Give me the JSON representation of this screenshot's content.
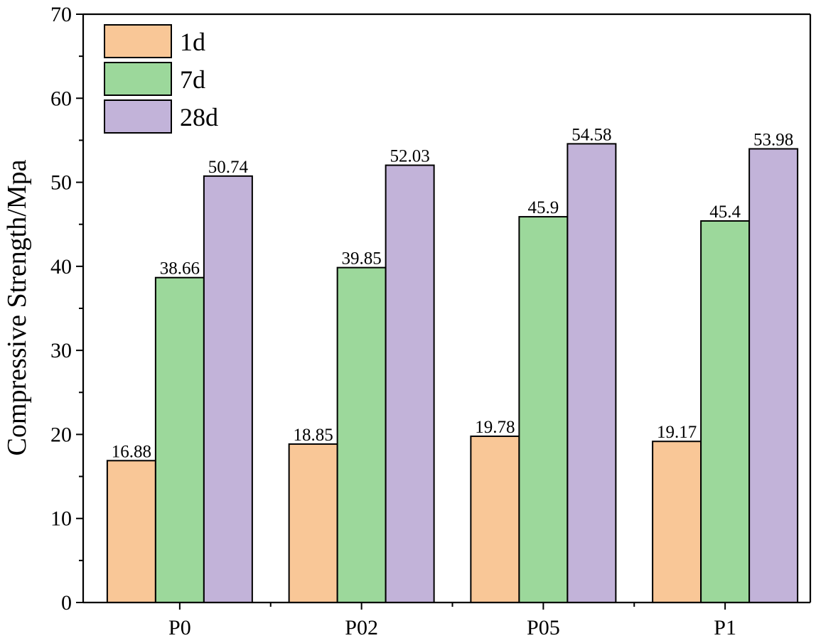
{
  "chart_data": {
    "type": "bar",
    "title": "",
    "xlabel": "",
    "ylabel": "Compressive Strength/Mpa",
    "ylim": [
      0,
      70
    ],
    "yticks": [
      0,
      10,
      20,
      30,
      40,
      50,
      60,
      70
    ],
    "categories": [
      "P0",
      "P02",
      "P05",
      "P1"
    ],
    "series": [
      {
        "name": "1d",
        "color": "#F9C797",
        "values": [
          16.88,
          18.85,
          19.78,
          19.17
        ],
        "labels": [
          "16.88",
          "18.85",
          "19.78",
          "19.17"
        ]
      },
      {
        "name": "7d",
        "color": "#9CD89B",
        "values": [
          38.66,
          39.85,
          45.9,
          45.4
        ],
        "labels": [
          "38.66",
          "39.85",
          "45.9",
          "45.4"
        ]
      },
      {
        "name": "28d",
        "color": "#C2B3D9",
        "values": [
          50.74,
          52.03,
          54.58,
          53.98
        ],
        "labels": [
          "50.74",
          "52.03",
          "54.58",
          "53.98"
        ]
      }
    ],
    "legend_position": "top-left",
    "grid": false
  }
}
